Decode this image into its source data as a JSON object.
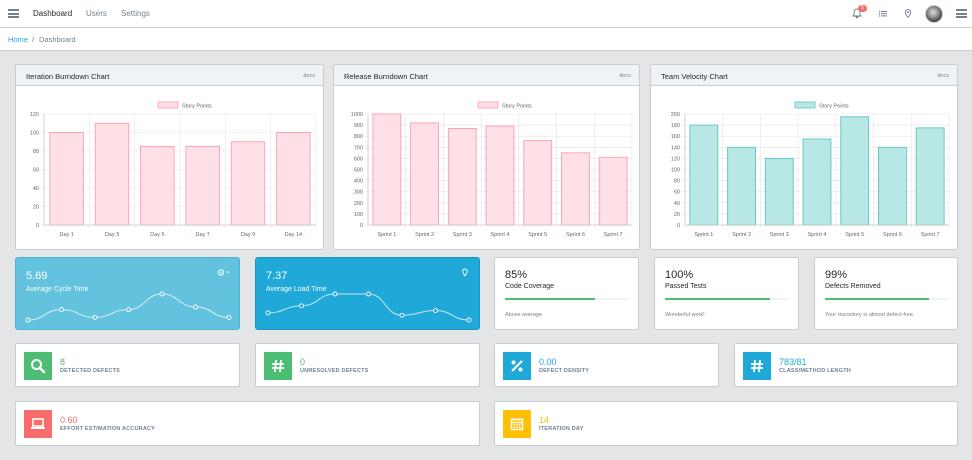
{
  "header": {
    "nav": [
      "Dashboard",
      "Users",
      "Settings"
    ],
    "notification_count": "5"
  },
  "breadcrumb": {
    "home": "Home",
    "separator": "/",
    "current": "Dashboard"
  },
  "charts": [
    {
      "title": "Iteration Burndown Chart",
      "docs": "docs",
      "chart_data": {
        "type": "bar",
        "title": "Iteration Burndown Chart",
        "legend": "Story Points",
        "legend_position": "top-center",
        "categories": [
          "Day 1",
          "Day 3",
          "Day 5",
          "Day 7",
          "Day 9",
          "Day 14"
        ],
        "series": [
          {
            "name": "Story Points",
            "values": [
              100,
              110,
              85,
              85,
              90,
              100
            ]
          }
        ],
        "ylim": [
          0,
          120
        ],
        "yticks": [
          0,
          20,
          40,
          60,
          80,
          100,
          120
        ],
        "grid": true,
        "fill": "#ffe0e6",
        "stroke": "#ff9bb1"
      }
    },
    {
      "title": "Release Burndown Chart",
      "docs": "docs",
      "chart_data": {
        "type": "bar",
        "title": "Release Burndown Chart",
        "legend": "Story Points",
        "legend_position": "top-center",
        "categories": [
          "Sprint 1",
          "Sprint 2",
          "Sprint 3",
          "Sprint 4",
          "Sprint 5",
          "Sprint 6",
          "Sprint 7"
        ],
        "series": [
          {
            "name": "Story Points",
            "values": [
              1000,
              920,
              870,
              890,
              760,
              650,
              610
            ]
          }
        ],
        "ylim": [
          0,
          1000
        ],
        "yticks": [
          0,
          100,
          200,
          300,
          400,
          500,
          600,
          700,
          800,
          900,
          1000
        ],
        "grid": true,
        "fill": "#ffe0e6",
        "stroke": "#ff9bb1"
      }
    },
    {
      "title": "Team Velocity Chart",
      "docs": "docs",
      "chart_data": {
        "type": "bar",
        "title": "Team Velocity Chart",
        "legend": "Story Points",
        "legend_position": "top-center",
        "categories": [
          "Sprint 1",
          "Sprint 2",
          "Sprint 3",
          "Sprint 4",
          "Sprint 5",
          "Sprint 6",
          "Sprint 7"
        ],
        "series": [
          {
            "name": "Story Points",
            "values": [
              180,
              140,
              120,
              155,
              195,
              140,
              175
            ]
          }
        ],
        "ylim": [
          0,
          200
        ],
        "yticks": [
          0,
          20,
          40,
          60,
          80,
          100,
          120,
          140,
          160,
          180,
          200
        ],
        "grid": true,
        "fill": "#b8e8e6",
        "stroke": "#5cc5c0"
      }
    }
  ],
  "tiles": {
    "cycle": {
      "value": "5.69",
      "label": "Average Cycle Time",
      "color": "#63c2de",
      "spark": [
        2,
        6,
        3,
        6,
        12,
        7,
        3
      ]
    },
    "load": {
      "value": "7.37",
      "label": "Average Load Time",
      "color": "#20a8d8",
      "spark": [
        4,
        7,
        12,
        12,
        3,
        5,
        1
      ]
    }
  },
  "progress": [
    {
      "value": "85%",
      "label": "Code Coverage",
      "fraction": 0.85,
      "note": "Above average"
    },
    {
      "value": "100%",
      "label": "Passed Tests",
      "fraction": 1.0,
      "note": "Wonderful work!"
    },
    {
      "value": "99%",
      "label": "Defects Removed",
      "fraction": 0.99,
      "note": "Your repository is almost defect-free."
    }
  ],
  "metrics": [
    {
      "value": "8",
      "label": "DETECTED DEFECTS",
      "color": "#4dbd74",
      "icon": "search-icon"
    },
    {
      "value": "0",
      "label": "UNRESOLVED DEFECTS",
      "color": "#4dbd74",
      "icon": "hash-icon"
    },
    {
      "value": "0.00",
      "label": "DEFECT DENSITY",
      "color": "#20a8d8",
      "icon": "percent-icon"
    },
    {
      "value": "783/81",
      "label": "CLASS/METHOD LENGTH",
      "color": "#20a8d8",
      "icon": "hash-icon"
    },
    {
      "value": "0.60",
      "label": "EFFORT ESTIMATION ACCURACY",
      "color": "#f86c6b",
      "icon": "laptop-icon"
    },
    {
      "value": "14",
      "label": "ITERATION DAY",
      "color": "#ffc107",
      "icon": "calendar-icon"
    }
  ]
}
